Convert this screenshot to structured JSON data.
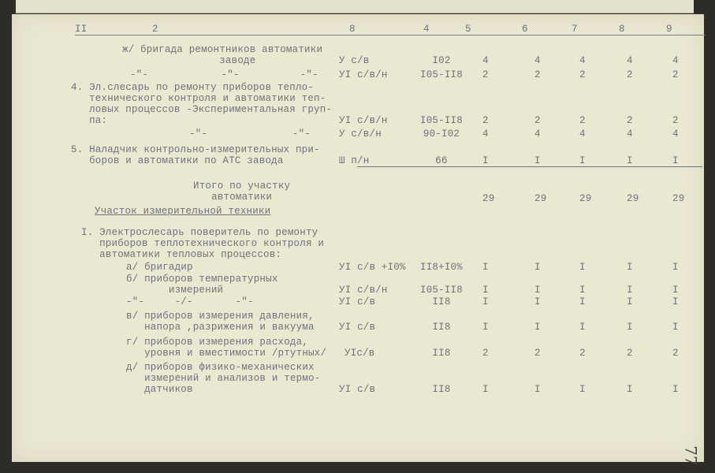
{
  "header_columns": [
    "II",
    "2",
    "8",
    "4",
    "5",
    "6",
    "7",
    "8",
    "9"
  ],
  "rows": [
    {
      "lines": [
        "ж/ бригада ремонтников автоматики",
        "                заводе"
      ],
      "grade": "У с/в",
      "rate": "I02",
      "values": [
        "4",
        "4",
        "4",
        "4",
        "4"
      ]
    },
    {
      "lines": [
        "-\"-            -\"-          -\"-"
      ],
      "grade": "УI с/в/н",
      "rate": "I05-II8",
      "values": [
        "2",
        "2",
        "2",
        "2",
        "2"
      ]
    },
    {
      "lines": [
        "4. Эл.слесарь по ремонту приборов тепло-",
        "   технического контроля и автоматики теп-",
        "   ловых процессов -Экспериментальная груп-",
        "   па:"
      ],
      "grade": "УI с/в/н",
      "rate": "I05-II8",
      "values": [
        "2",
        "2",
        "2",
        "2",
        "2"
      ]
    },
    {
      "lines": [
        "-\"-              -\"-"
      ],
      "grade": "У с/в/н",
      "rate": "90-I02",
      "values": [
        "4",
        "4",
        "4",
        "4",
        "4"
      ]
    },
    {
      "lines": [
        "5. Наладчик контрольно-измерительных при-",
        "   боров и автоматики по АТС завода"
      ],
      "grade": "Ш п/н",
      "rate": "66",
      "values": [
        "I",
        "I",
        "I",
        "I",
        "I"
      ]
    },
    {
      "lines": [
        "Итого по участку",
        "   автоматики"
      ],
      "grade": "",
      "rate": "",
      "values": [
        "29",
        "29",
        "29",
        "29",
        "29"
      ]
    },
    {
      "lines": [
        "Участок измерительной техники"
      ],
      "grade": "",
      "rate": "",
      "values": []
    },
    {
      "lines": [
        "I. Электрослесарь поверитель по ремонту",
        "   приборов теплотехнического контроля и",
        "   автоматики тепловых процессов:"
      ],
      "grade": "",
      "rate": "",
      "values": []
    },
    {
      "lines": [
        "а/ бригадир"
      ],
      "grade": "УI с/в +I0%",
      "rate": "II8+I0%",
      "values": [
        "I",
        "I",
        "I",
        "I",
        "I"
      ]
    },
    {
      "lines": [
        "б/ приборов температурных",
        "       измерений"
      ],
      "grade": "УI с/в/н",
      "rate": "I05-II8",
      "values": [
        "I",
        "I",
        "I",
        "I",
        "I"
      ]
    },
    {
      "lines": [
        "-\"-     -/-       -\"-"
      ],
      "grade": "УI с/в",
      "rate": "II8",
      "values": [
        "I",
        "I",
        "I",
        "I",
        "I"
      ]
    },
    {
      "lines": [
        "в/ приборов измерения давления,",
        "   напора ,разрижения и вакуума"
      ],
      "grade": "УI с/в",
      "rate": "II8",
      "values": [
        "I",
        "I",
        "I",
        "I",
        "I"
      ]
    },
    {
      "lines": [
        "г/ приборов измерения расхода,",
        "   уровня и вместимости /ртутных/"
      ],
      "grade": "УIс/в",
      "rate": "II8",
      "values": [
        "2",
        "2",
        "2",
        "2",
        "2"
      ]
    },
    {
      "lines": [
        "д/ приборов физико-механических",
        "   измерений и анализов и термо-",
        "   датчиков"
      ],
      "grade": "УI с/в",
      "rate": "II8",
      "values": [
        "I",
        "I",
        "I",
        "I",
        "I"
      ]
    }
  ],
  "page_number": "77"
}
